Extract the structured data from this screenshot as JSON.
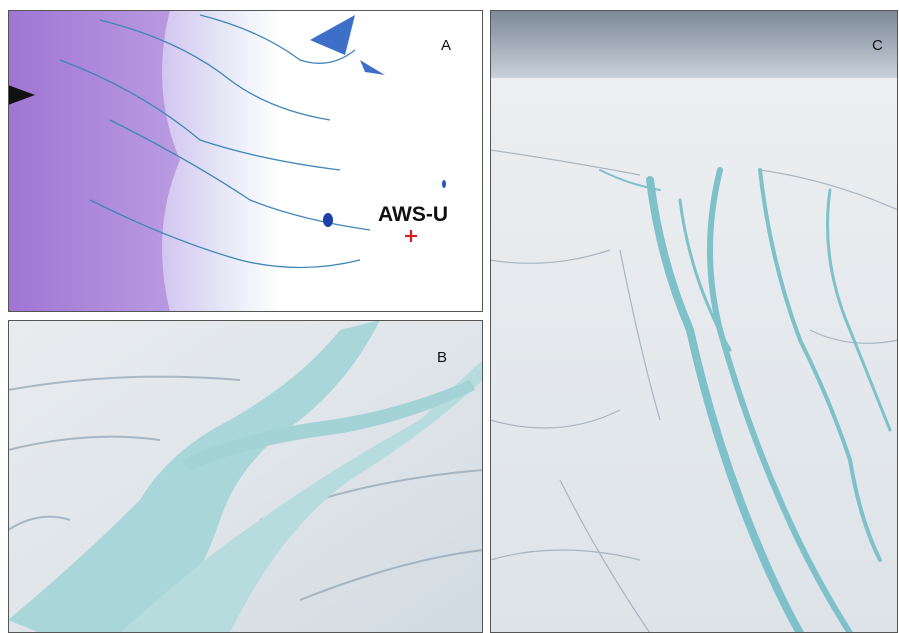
{
  "panels": [
    {
      "label": "A",
      "annotation": "AWS-U"
    },
    {
      "label": "B"
    },
    {
      "label": "C"
    }
  ]
}
